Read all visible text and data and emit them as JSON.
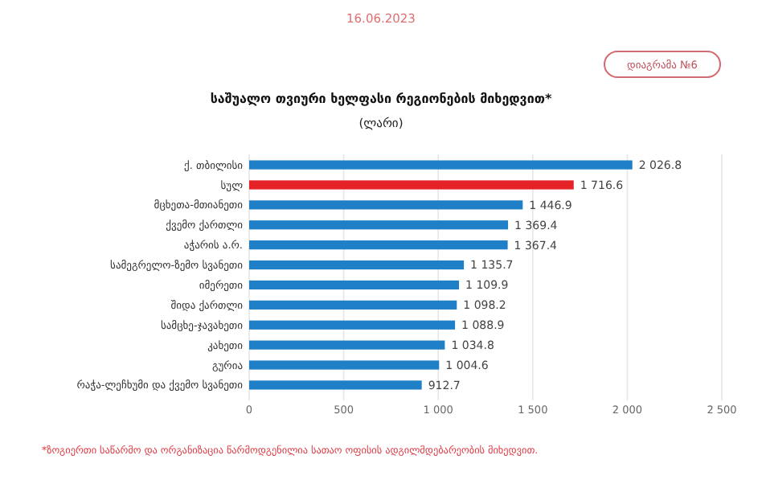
{
  "chart_data": {
    "type": "bar",
    "orientation": "horizontal",
    "title": "საშუალო თვიური ხელფასი რეგიონების მიხედვით*",
    "subtitle": "(ლარი)",
    "annotations": [
      "16.06.2023",
      "დიაგრამა №6",
      "*ზოგიერთი საწარმო და ორგანიზაცია წარმოდგენილია სათაო ოფისის ადგილმდებარეობის მიხედვით."
    ],
    "categories": [
      "ქ. თბილისი",
      "სულ",
      "მცხეთა-მთიანეთი",
      "ქვემო ქართლი",
      "აჭარის ა.რ.",
      "სამეგრელო-ზემო სვანეთი",
      "იმერეთი",
      "შიდა ქართლი",
      "სამცხე-ჯავახეთი",
      "კახეთი",
      "გურია",
      "რაჭა-ლეჩხუმი და ქვემო სვანეთი"
    ],
    "values": [
      2026.8,
      1716.6,
      1446.9,
      1369.4,
      1367.4,
      1135.7,
      1109.9,
      1098.2,
      1088.9,
      1034.8,
      1004.6,
      912.7
    ],
    "colors": [
      "#1f80c8",
      "#e52228",
      "#1f80c8",
      "#1f80c8",
      "#1f80c8",
      "#1f80c8",
      "#1f80c8",
      "#1f80c8",
      "#1f80c8",
      "#1f80c8",
      "#1f80c8",
      "#1f80c8"
    ],
    "data_labels": true,
    "xlim": [
      0,
      2500
    ],
    "xticks": [
      0,
      500,
      {
        "value": 1000,
        "label": "1 000"
      },
      {
        "value": 1500,
        "label": "1 500"
      },
      {
        "value": 2000,
        "label": "2 000"
      },
      {
        "value": 2500,
        "label": "2 500"
      }
    ],
    "grid": "x"
  }
}
